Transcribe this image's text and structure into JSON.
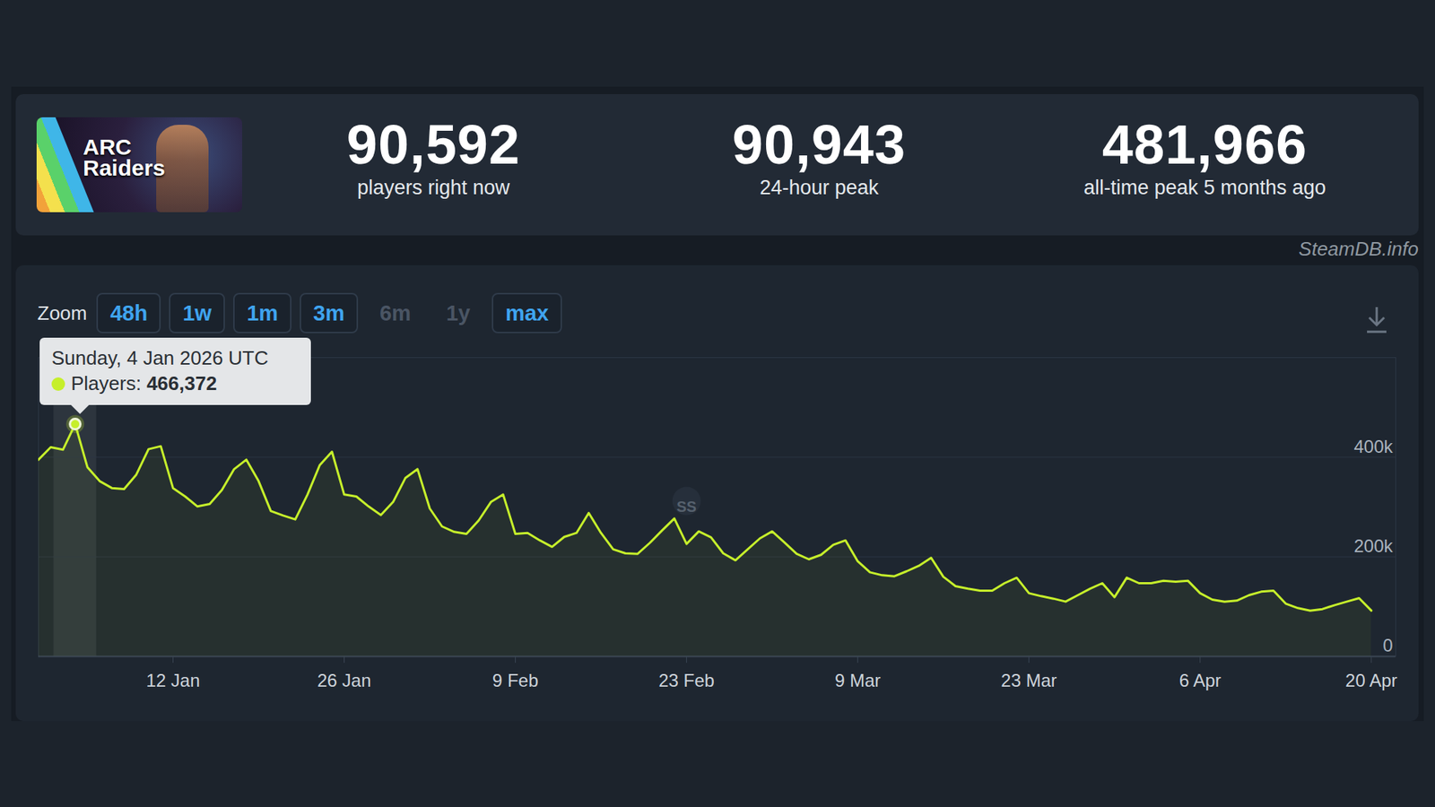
{
  "header": {
    "image_text": [
      "ARC",
      "Raiders"
    ],
    "stats": [
      {
        "value": "90,592",
        "label": "players right now"
      },
      {
        "value": "90,943",
        "label": "24-hour peak"
      },
      {
        "value": "481,966",
        "label": "all-time peak 5 months ago"
      }
    ],
    "source": "SteamDB.info"
  },
  "zoom": {
    "label": "Zoom",
    "buttons": [
      {
        "label": "48h",
        "enabled": true
      },
      {
        "label": "1w",
        "enabled": true
      },
      {
        "label": "1m",
        "enabled": true
      },
      {
        "label": "3m",
        "enabled": true
      },
      {
        "label": "6m",
        "enabled": false
      },
      {
        "label": "1y",
        "enabled": false
      },
      {
        "label": "max",
        "enabled": true
      }
    ]
  },
  "tooltip": {
    "x": "2026-01-04",
    "date_label": "Sunday, 4 Jan 2026 UTC",
    "series_label": "Players:",
    "value": 466372,
    "value_label": "466,372"
  },
  "chart_data": {
    "type": "line",
    "color": "#c6ef2b",
    "grid": true,
    "x": [
      "2026-01-01",
      "2026-01-02",
      "2026-01-03",
      "2026-01-04",
      "2026-01-05",
      "2026-01-06",
      "2026-01-07",
      "2026-01-08",
      "2026-01-09",
      "2026-01-10",
      "2026-01-11",
      "2026-01-12",
      "2026-01-13",
      "2026-01-14",
      "2026-01-15",
      "2026-01-16",
      "2026-01-17",
      "2026-01-18",
      "2026-01-19",
      "2026-01-20",
      "2026-01-21",
      "2026-01-22",
      "2026-01-23",
      "2026-01-24",
      "2026-01-25",
      "2026-01-26",
      "2026-01-27",
      "2026-01-28",
      "2026-01-29",
      "2026-01-30",
      "2026-01-31",
      "2026-02-01",
      "2026-02-02",
      "2026-02-03",
      "2026-02-04",
      "2026-02-05",
      "2026-02-06",
      "2026-02-07",
      "2026-02-08",
      "2026-02-09",
      "2026-02-10",
      "2026-02-11",
      "2026-02-12",
      "2026-02-13",
      "2026-02-14",
      "2026-02-15",
      "2026-02-16",
      "2026-02-17",
      "2026-02-18",
      "2026-02-19",
      "2026-02-20",
      "2026-02-21",
      "2026-02-22",
      "2026-02-23",
      "2026-02-24",
      "2026-02-25",
      "2026-02-26",
      "2026-02-27",
      "2026-02-28",
      "2026-03-01",
      "2026-03-02",
      "2026-03-03",
      "2026-03-04",
      "2026-03-05",
      "2026-03-06",
      "2026-03-07",
      "2026-03-08",
      "2026-03-09",
      "2026-03-10",
      "2026-03-11",
      "2026-03-12",
      "2026-03-13",
      "2026-03-14",
      "2026-03-15",
      "2026-03-16",
      "2026-03-17",
      "2026-03-18",
      "2026-03-19",
      "2026-03-20",
      "2026-03-21",
      "2026-03-22",
      "2026-03-23",
      "2026-03-24",
      "2026-03-25",
      "2026-03-26",
      "2026-03-27",
      "2026-03-28",
      "2026-03-29",
      "2026-03-30",
      "2026-03-31",
      "2026-04-01",
      "2026-04-02",
      "2026-04-03",
      "2026-04-04",
      "2026-04-05",
      "2026-04-06",
      "2026-04-07",
      "2026-04-08",
      "2026-04-09",
      "2026-04-10",
      "2026-04-11",
      "2026-04-12",
      "2026-04-13",
      "2026-04-14",
      "2026-04-15",
      "2026-04-16",
      "2026-04-17",
      "2026-04-18",
      "2026-04-19",
      "2026-04-20"
    ],
    "series": [
      {
        "name": "Players",
        "values": [
          395000,
          420000,
          415000,
          466372,
          380000,
          352000,
          338000,
          336000,
          365000,
          416000,
          422000,
          338000,
          321000,
          301000,
          306000,
          334000,
          376000,
          395000,
          352000,
          292000,
          283000,
          275000,
          325000,
          384000,
          411000,
          325000,
          321000,
          301000,
          284000,
          310000,
          358000,
          376000,
          297000,
          261000,
          250000,
          246000,
          273000,
          310000,
          325000,
          246000,
          248000,
          233000,
          220000,
          240000,
          248000,
          288000,
          248000,
          215000,
          207000,
          206000,
          228000,
          253000,
          277000,
          226000,
          251000,
          239000,
          207000,
          193000,
          215000,
          237000,
          251000,
          229000,
          206000,
          195000,
          204000,
          224000,
          233000,
          191000,
          169000,
          163000,
          161000,
          171000,
          182000,
          198000,
          160000,
          141000,
          136000,
          132000,
          132000,
          147000,
          158000,
          127000,
          121000,
          116000,
          110000,
          123000,
          136000,
          147000,
          119000,
          158000,
          147000,
          147000,
          152000,
          150000,
          152000,
          127000,
          114000,
          110000,
          112000,
          123000,
          130000,
          132000,
          106000,
          97000,
          92000,
          95000,
          103000,
          110000,
          117000,
          92000
        ]
      }
    ],
    "xlim": [
      "2026-01-01",
      "2026-04-22"
    ],
    "xticks": [
      {
        "value": "2026-01-12",
        "label": "12 Jan"
      },
      {
        "value": "2026-01-26",
        "label": "26 Jan"
      },
      {
        "value": "2026-02-09",
        "label": "9 Feb"
      },
      {
        "value": "2026-02-23",
        "label": "23 Feb"
      },
      {
        "value": "2026-03-09",
        "label": "9 Mar"
      },
      {
        "value": "2026-03-23",
        "label": "23 Mar"
      },
      {
        "value": "2026-04-06",
        "label": "6 Apr"
      },
      {
        "value": "2026-04-20",
        "label": "20 Apr"
      }
    ],
    "ylim": [
      0,
      600000
    ],
    "yticks": [
      0,
      {
        "value": 200000,
        "label": "200k"
      },
      {
        "value": 400000,
        "label": "400k"
      }
    ],
    "annotations": [
      {
        "x": "2026-02-23",
        "label": "SS"
      }
    ]
  }
}
